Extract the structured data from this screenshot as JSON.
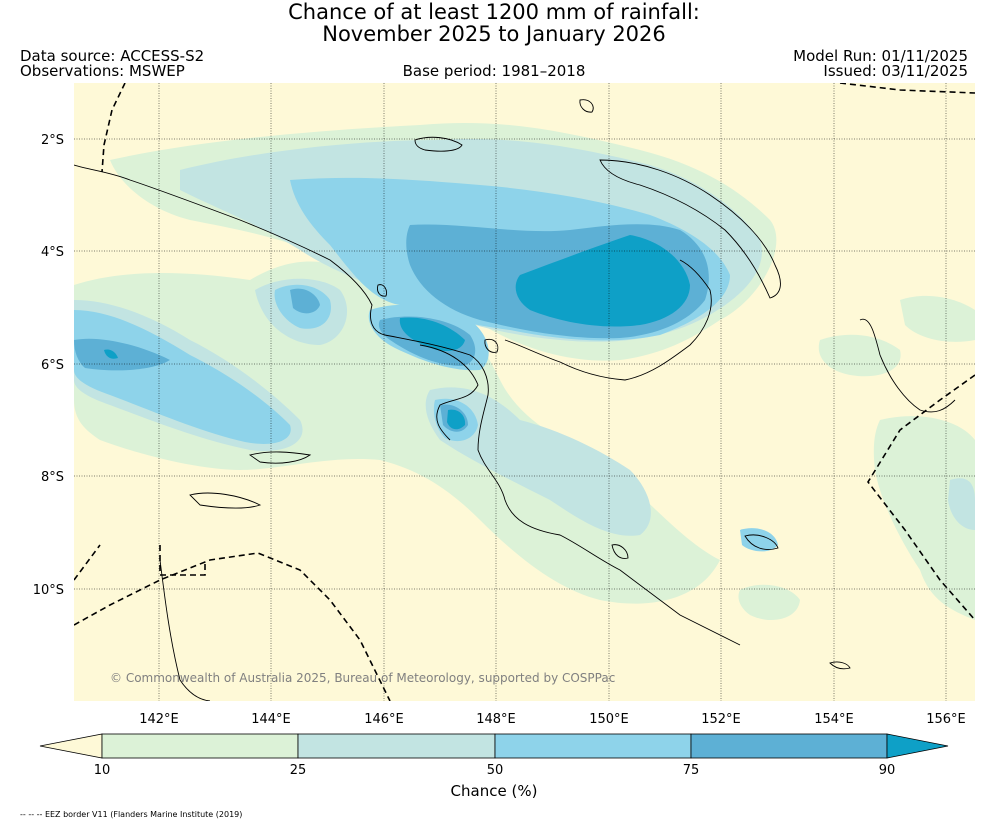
{
  "title_line1": "Chance of at least 1200 mm of rainfall:",
  "title_line2": "November 2025 to January 2026",
  "data_source": "Data source: ACCESS-S2",
  "observations": "Observations: MSWEP",
  "base_period": "Base period: 1981–2018",
  "model_run": "Model Run: 01/11/2025",
  "issued": "Issued: 03/11/2025",
  "copyright": "© Commonwealth of Australia 2025, Bureau of Meteorology, supported by COSPPac",
  "lat_labels": [
    "2°S",
    "4°S",
    "6°S",
    "8°S",
    "10°S"
  ],
  "lon_labels": [
    "142°E",
    "144°E",
    "146°E",
    "148°E",
    "150°E",
    "152°E",
    "154°E",
    "156°E"
  ],
  "colorbar": {
    "label": "Chance (%)",
    "ticks": [
      "10",
      "25",
      "50",
      "75",
      "90"
    ],
    "colors": [
      "#fef9d7",
      "#dcf2d7",
      "#c2e4e2",
      "#8ed3ea",
      "#5db0d5",
      "#0ea0c7"
    ]
  },
  "footnote": "-- -- -- EEZ border V11 (Flanders Marine Institute (2019)"
}
